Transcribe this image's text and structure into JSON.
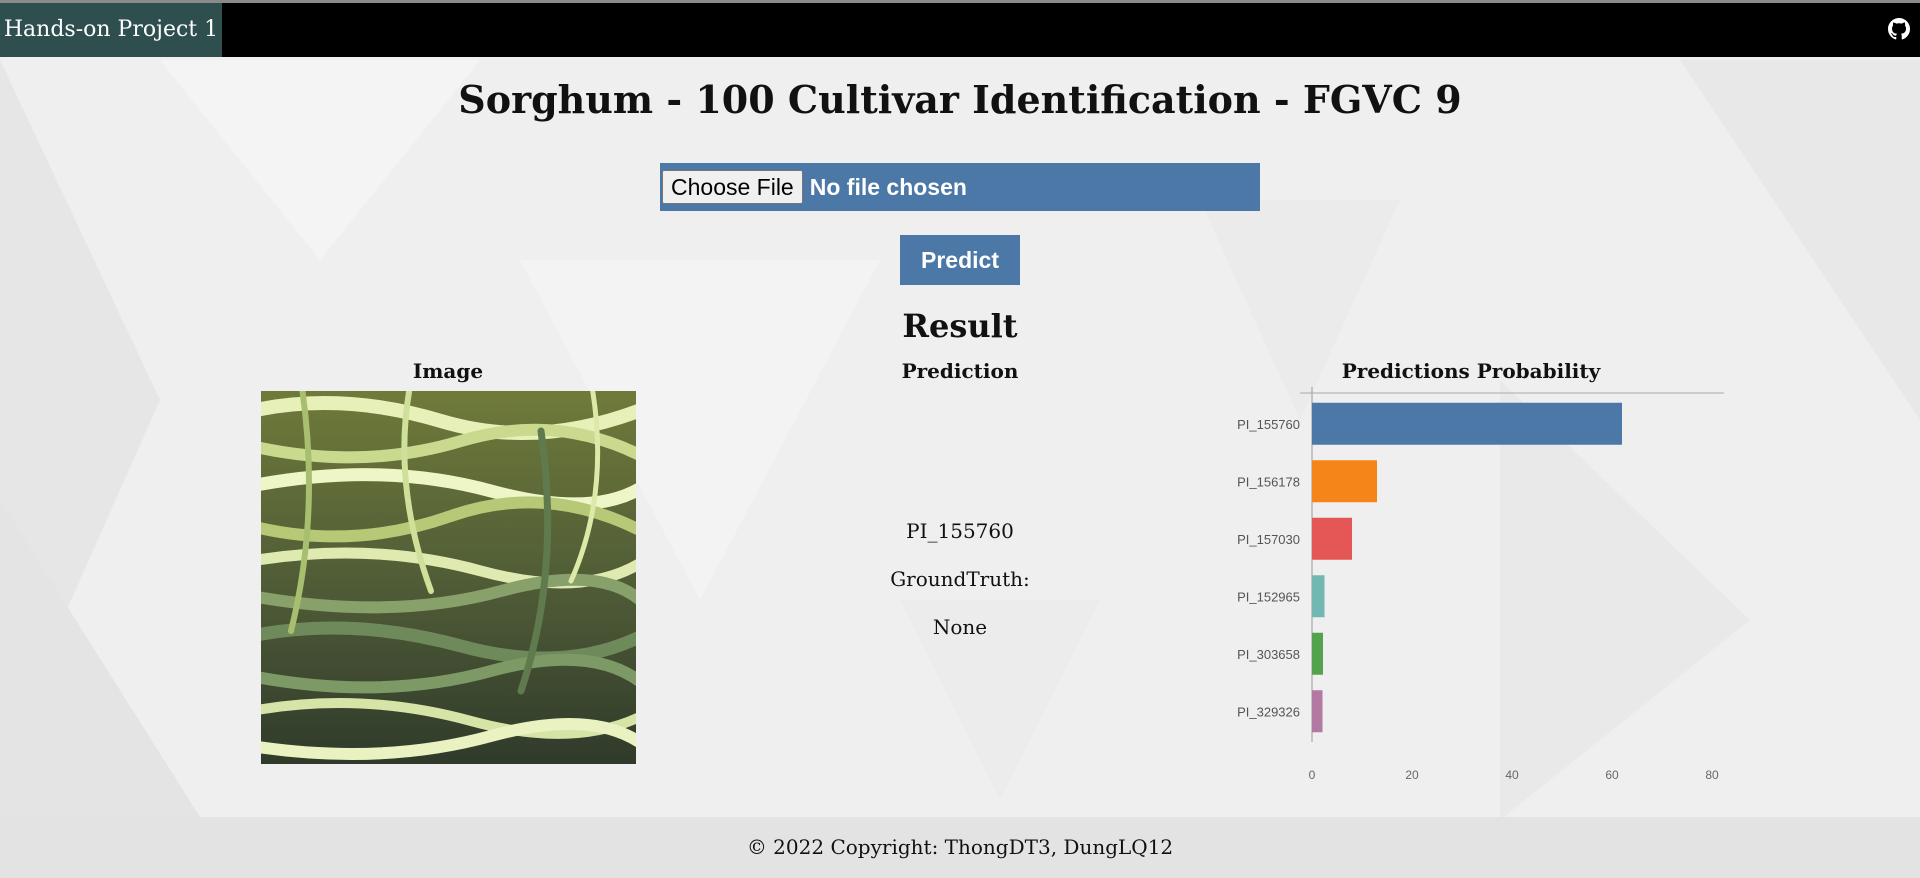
{
  "navbar": {
    "brand": "Hands-on Project 1",
    "github_icon": "github-icon"
  },
  "main": {
    "title": "Sorghum - 100 Cultivar Identification - FGVC 9",
    "file_input": {
      "button_label": "Choose File",
      "status": "No file chosen"
    },
    "predict_button": "Predict",
    "result_title": "Result",
    "columns": {
      "image": "Image",
      "prediction": "Prediction",
      "probability": "Predictions Probability"
    },
    "prediction": {
      "label": "PI_155760",
      "groundtruth_label": "GroundTruth:",
      "groundtruth_value": "None"
    }
  },
  "chart_data": {
    "type": "bar",
    "orientation": "horizontal",
    "categories": [
      "PI_155760",
      "PI_156178",
      "PI_157030",
      "PI_152965",
      "PI_303658",
      "PI_329326"
    ],
    "values": [
      62,
      13,
      8,
      2.5,
      2.2,
      2.1
    ],
    "colors": [
      "#4c78a8",
      "#f58518",
      "#e45756",
      "#72b7b2",
      "#54a24b",
      "#b279a2"
    ],
    "xlim": [
      0,
      80
    ],
    "xticks": [
      "0",
      "20",
      "40",
      "60",
      "80"
    ],
    "grid": false
  },
  "footer": {
    "copyright": "© 2022 Copyright: ThongDT3, DungLQ12"
  },
  "colors": {
    "accent": "#4c78a8",
    "brand_bg": "#2f4f4f",
    "navbar_bg": "#000000"
  }
}
